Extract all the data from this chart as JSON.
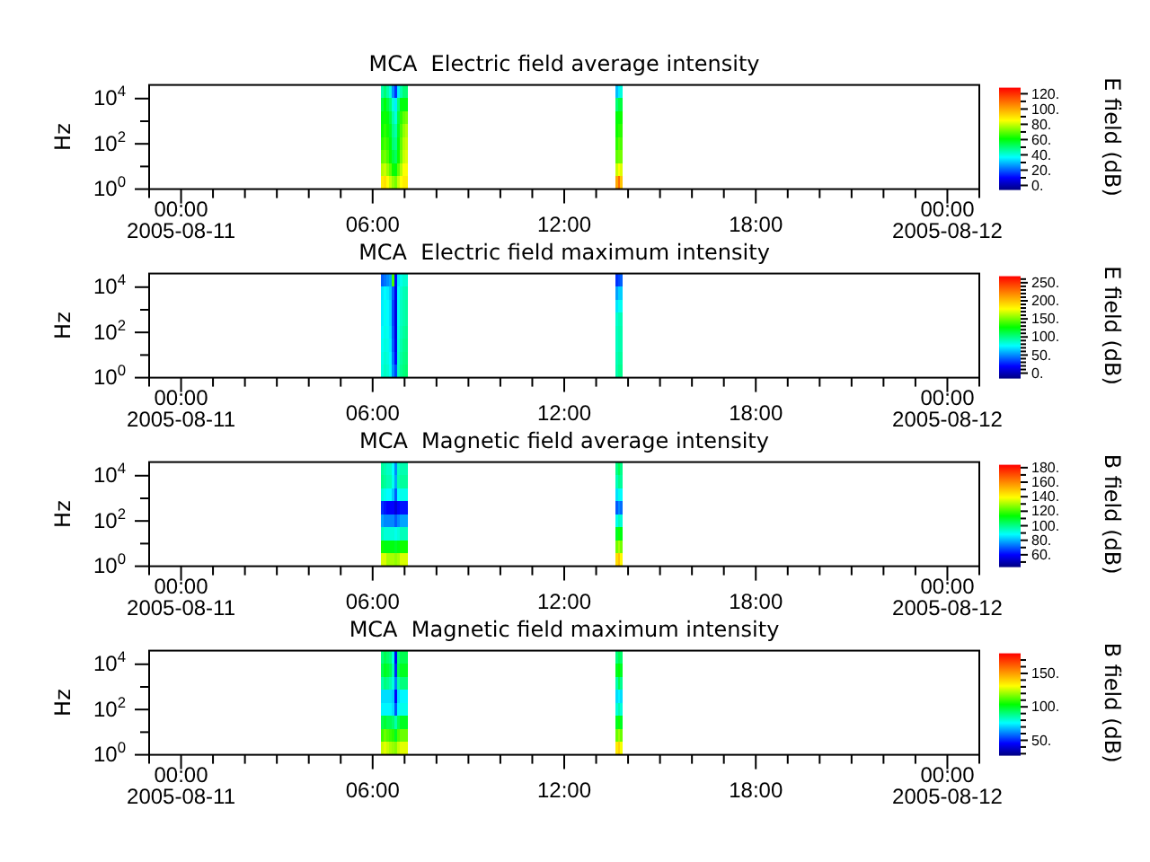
{
  "chart_data": [
    {
      "type": "heatmap",
      "title": "MCA  Electric field average intensity",
      "ylabel": "Hz",
      "clabel": "E field (dB)",
      "x": [
        "2005-08-11T06:18",
        "2005-08-11T06:23",
        "2005-08-11T06:28",
        "2005-08-11T06:33",
        "2005-08-11T06:38",
        "2005-08-11T06:43",
        "2005-08-11T06:48",
        "2005-08-11T06:53",
        "2005-08-11T06:58",
        "2005-08-11T07:03",
        "2005-08-11T07:08",
        "2005-08-11T13:33",
        "2005-08-11T13:38",
        "2005-08-11T13:43",
        "2005-08-11T13:48"
      ],
      "cells": [
        [
          45,
          50,
          45,
          40,
          25,
          15,
          35,
          45,
          50,
          50,
          null,
          null,
          30,
          35,
          40
        ],
        [
          55,
          60,
          55,
          50,
          40,
          35,
          50,
          60,
          60,
          60,
          null,
          null,
          50,
          55,
          55
        ],
        [
          60,
          62,
          60,
          55,
          45,
          40,
          55,
          65,
          70,
          72,
          null,
          null,
          60,
          62,
          62
        ],
        [
          62,
          65,
          62,
          58,
          48,
          45,
          58,
          68,
          75,
          78,
          null,
          null,
          62,
          65,
          65
        ],
        [
          65,
          68,
          65,
          60,
          50,
          48,
          60,
          70,
          78,
          80,
          null,
          null,
          65,
          70,
          68
        ],
        [
          70,
          72,
          68,
          62,
          55,
          52,
          62,
          72,
          80,
          82,
          null,
          null,
          70,
          72,
          72
        ],
        [
          78,
          80,
          75,
          70,
          62,
          60,
          70,
          78,
          85,
          85,
          null,
          null,
          80,
          85,
          82
        ],
        [
          88,
          90,
          85,
          80,
          75,
          72,
          80,
          85,
          88,
          88,
          null,
          null,
          100,
          110,
          95
        ]
      ],
      "xlim": [
        "2005-08-10T23:00",
        "2005-08-12T01:00"
      ],
      "xticks": [
        {
          "value": "2005-08-10T23:00",
          "label": null
        },
        {
          "value": "2005-08-11T00:00",
          "label": "00:00\n2005-08-11"
        },
        {
          "value": "2005-08-11T01:00",
          "label": null
        },
        {
          "value": "2005-08-11T02:00",
          "label": null
        },
        {
          "value": "2005-08-11T03:00",
          "label": null
        },
        {
          "value": "2005-08-11T04:00",
          "label": null
        },
        {
          "value": "2005-08-11T05:00",
          "label": null
        },
        {
          "value": "2005-08-11T06:00",
          "label": "06:00"
        },
        {
          "value": "2005-08-11T07:00",
          "label": null
        },
        {
          "value": "2005-08-11T08:00",
          "label": null
        },
        {
          "value": "2005-08-11T09:00",
          "label": null
        },
        {
          "value": "2005-08-11T10:00",
          "label": null
        },
        {
          "value": "2005-08-11T11:00",
          "label": null
        },
        {
          "value": "2005-08-11T12:00",
          "label": "12:00"
        },
        {
          "value": "2005-08-11T13:00",
          "label": null
        },
        {
          "value": "2005-08-11T14:00",
          "label": null
        },
        {
          "value": "2005-08-11T15:00",
          "label": null
        },
        {
          "value": "2005-08-11T16:00",
          "label": null
        },
        {
          "value": "2005-08-11T17:00",
          "label": null
        },
        {
          "value": "2005-08-11T18:00",
          "label": "18:00"
        },
        {
          "value": "2005-08-11T19:00",
          "label": null
        },
        {
          "value": "2005-08-11T20:00",
          "label": null
        },
        {
          "value": "2005-08-11T21:00",
          "label": null
        },
        {
          "value": "2005-08-11T22:00",
          "label": null
        },
        {
          "value": "2005-08-11T23:00",
          "label": null
        },
        {
          "value": "2005-08-12T00:00",
          "label": "00:00\n2005-08-12"
        },
        {
          "value": "2005-08-12T01:00",
          "label": null
        }
      ],
      "ylim": [
        1,
        40000
      ],
      "yticks": [
        {
          "value": 1,
          "label": "10$^{0}$"
        },
        {
          "value": 10,
          "label": null
        },
        {
          "value": 100,
          "label": "10$^{2}$"
        },
        {
          "value": 1000,
          "label": null
        },
        {
          "value": 10000,
          "label": "10$^{4}$"
        }
      ],
      "log": "y",
      "clim": [
        -6,
        128
      ],
      "cticks": [
        {
          "value": 0,
          "label": "0."
        },
        {
          "value": 10,
          "label": null
        },
        {
          "value": 20,
          "label": "20."
        },
        {
          "value": 30,
          "label": null
        },
        {
          "value": 40,
          "label": "40."
        },
        {
          "value": 50,
          "label": null
        },
        {
          "value": 60,
          "label": "60."
        },
        {
          "value": 70,
          "label": null
        },
        {
          "value": 80,
          "label": "80."
        },
        {
          "value": 90,
          "label": null
        },
        {
          "value": 100,
          "label": "100."
        },
        {
          "value": 110,
          "label": null
        },
        {
          "value": 120,
          "label": "120."
        }
      ]
    },
    {
      "type": "heatmap",
      "title": "MCA  Electric field maximum intensity",
      "ylabel": "Hz",
      "clabel": "E field (dB)",
      "x": [
        "2005-08-11T06:18",
        "2005-08-11T06:23",
        "2005-08-11T06:28",
        "2005-08-11T06:33",
        "2005-08-11T06:38",
        "2005-08-11T06:43",
        "2005-08-11T06:48",
        "2005-08-11T06:53",
        "2005-08-11T06:58",
        "2005-08-11T07:03",
        "2005-08-11T07:08",
        "2005-08-11T13:33",
        "2005-08-11T13:38",
        "2005-08-11T13:43",
        "2005-08-11T13:48"
      ],
      "cells": [
        [
          40,
          45,
          50,
          55,
          140,
          20,
          70,
          80,
          85,
          85,
          null,
          null,
          30,
          35,
          40
        ],
        [
          70,
          75,
          72,
          65,
          40,
          15,
          75,
          85,
          90,
          92,
          null,
          null,
          55,
          65,
          65
        ],
        [
          72,
          78,
          75,
          68,
          35,
          12,
          78,
          88,
          92,
          95,
          null,
          null,
          70,
          78,
          78
        ],
        [
          72,
          78,
          75,
          68,
          35,
          12,
          78,
          88,
          92,
          95,
          null,
          null,
          85,
          90,
          90
        ],
        [
          75,
          80,
          78,
          70,
          38,
          12,
          80,
          90,
          95,
          98,
          null,
          null,
          88,
          92,
          92
        ],
        [
          78,
          82,
          80,
          72,
          40,
          15,
          82,
          92,
          98,
          100,
          null,
          null,
          88,
          92,
          92
        ],
        [
          80,
          85,
          82,
          75,
          45,
          20,
          85,
          95,
          100,
          102,
          null,
          null,
          90,
          95,
          95
        ],
        [
          82,
          88,
          85,
          78,
          50,
          35,
          88,
          98,
          102,
          105,
          null,
          null,
          92,
          98,
          98
        ]
      ],
      "xlim": [
        "2005-08-10T23:00",
        "2005-08-12T01:00"
      ],
      "xticks": [
        {
          "value": "2005-08-10T23:00",
          "label": null
        },
        {
          "value": "2005-08-11T00:00",
          "label": "00:00\n2005-08-11"
        },
        {
          "value": "2005-08-11T01:00",
          "label": null
        },
        {
          "value": "2005-08-11T02:00",
          "label": null
        },
        {
          "value": "2005-08-11T03:00",
          "label": null
        },
        {
          "value": "2005-08-11T04:00",
          "label": null
        },
        {
          "value": "2005-08-11T05:00",
          "label": null
        },
        {
          "value": "2005-08-11T06:00",
          "label": "06:00"
        },
        {
          "value": "2005-08-11T07:00",
          "label": null
        },
        {
          "value": "2005-08-11T08:00",
          "label": null
        },
        {
          "value": "2005-08-11T09:00",
          "label": null
        },
        {
          "value": "2005-08-11T10:00",
          "label": null
        },
        {
          "value": "2005-08-11T11:00",
          "label": null
        },
        {
          "value": "2005-08-11T12:00",
          "label": "12:00"
        },
        {
          "value": "2005-08-11T13:00",
          "label": null
        },
        {
          "value": "2005-08-11T14:00",
          "label": null
        },
        {
          "value": "2005-08-11T15:00",
          "label": null
        },
        {
          "value": "2005-08-11T16:00",
          "label": null
        },
        {
          "value": "2005-08-11T17:00",
          "label": null
        },
        {
          "value": "2005-08-11T18:00",
          "label": "18:00"
        },
        {
          "value": "2005-08-11T19:00",
          "label": null
        },
        {
          "value": "2005-08-11T20:00",
          "label": null
        },
        {
          "value": "2005-08-11T21:00",
          "label": null
        },
        {
          "value": "2005-08-11T22:00",
          "label": null
        },
        {
          "value": "2005-08-11T23:00",
          "label": null
        },
        {
          "value": "2005-08-12T00:00",
          "label": "00:00\n2005-08-12"
        },
        {
          "value": "2005-08-12T01:00",
          "label": null
        }
      ],
      "ylim": [
        1,
        40000
      ],
      "yticks": [
        {
          "value": 1,
          "label": "10$^{0}$"
        },
        {
          "value": 10,
          "label": null
        },
        {
          "value": 100,
          "label": "10$^{2}$"
        },
        {
          "value": 1000,
          "label": null
        },
        {
          "value": 10000,
          "label": "10$^{4}$"
        }
      ],
      "log": "y",
      "clim": [
        -15,
        268
      ],
      "cticks": [
        {
          "value": 0,
          "label": "0."
        },
        {
          "value": 10,
          "label": null
        },
        {
          "value": 20,
          "label": null
        },
        {
          "value": 30,
          "label": null
        },
        {
          "value": 40,
          "label": null
        },
        {
          "value": 50,
          "label": "50."
        },
        {
          "value": 60,
          "label": null
        },
        {
          "value": 70,
          "label": null
        },
        {
          "value": 80,
          "label": null
        },
        {
          "value": 90,
          "label": null
        },
        {
          "value": 100,
          "label": "100."
        },
        {
          "value": 110,
          "label": null
        },
        {
          "value": 120,
          "label": null
        },
        {
          "value": 130,
          "label": null
        },
        {
          "value": 140,
          "label": null
        },
        {
          "value": 150,
          "label": "150."
        },
        {
          "value": 160,
          "label": null
        },
        {
          "value": 170,
          "label": null
        },
        {
          "value": 180,
          "label": null
        },
        {
          "value": 190,
          "label": null
        },
        {
          "value": 200,
          "label": "200."
        },
        {
          "value": 210,
          "label": null
        },
        {
          "value": 220,
          "label": null
        },
        {
          "value": 230,
          "label": null
        },
        {
          "value": 240,
          "label": null
        },
        {
          "value": 250,
          "label": "250."
        },
        {
          "value": 260,
          "label": null
        }
      ]
    },
    {
      "type": "heatmap",
      "title": "MCA  Magnetic field average intensity",
      "ylabel": "Hz",
      "clabel": "B field (dB)",
      "x": [
        "2005-08-11T06:18",
        "2005-08-11T06:23",
        "2005-08-11T06:28",
        "2005-08-11T06:33",
        "2005-08-11T06:38",
        "2005-08-11T06:43",
        "2005-08-11T06:48",
        "2005-08-11T06:53",
        "2005-08-11T06:58",
        "2005-08-11T07:03",
        "2005-08-11T07:08",
        "2005-08-11T13:33",
        "2005-08-11T13:38",
        "2005-08-11T13:43",
        "2005-08-11T13:48"
      ],
      "cells": [
        [
          98,
          96,
          94,
          94,
          88,
          75,
          94,
          96,
          96,
          96,
          null,
          null,
          100,
          105,
          100
        ],
        [
          100,
          98,
          96,
          96,
          90,
          78,
          96,
          98,
          98,
          98,
          null,
          null,
          95,
          100,
          98
        ],
        [
          92,
          90,
          88,
          88,
          82,
          70,
          88,
          90,
          90,
          90,
          null,
          null,
          85,
          90,
          88
        ],
        [
          65,
          62,
          60,
          60,
          60,
          55,
          60,
          62,
          62,
          62,
          null,
          null,
          70,
          75,
          72
        ],
        [
          78,
          75,
          75,
          75,
          75,
          70,
          75,
          78,
          78,
          78,
          null,
          null,
          90,
          95,
          92
        ],
        [
          95,
          92,
          92,
          92,
          92,
          90,
          92,
          95,
          95,
          95,
          null,
          null,
          110,
          115,
          112
        ],
        [
          115,
          112,
          112,
          112,
          112,
          110,
          112,
          115,
          115,
          115,
          null,
          null,
          125,
          130,
          125
        ],
        [
          135,
          135,
          130,
          130,
          130,
          128,
          130,
          135,
          135,
          135,
          null,
          null,
          145,
          150,
          140
        ]
      ],
      "xlim": [
        "2005-08-10T23:00",
        "2005-08-12T01:00"
      ],
      "xticks": [
        {
          "value": "2005-08-10T23:00",
          "label": null
        },
        {
          "value": "2005-08-11T00:00",
          "label": "00:00\n2005-08-11"
        },
        {
          "value": "2005-08-11T01:00",
          "label": null
        },
        {
          "value": "2005-08-11T02:00",
          "label": null
        },
        {
          "value": "2005-08-11T03:00",
          "label": null
        },
        {
          "value": "2005-08-11T04:00",
          "label": null
        },
        {
          "value": "2005-08-11T05:00",
          "label": null
        },
        {
          "value": "2005-08-11T06:00",
          "label": "06:00"
        },
        {
          "value": "2005-08-11T07:00",
          "label": null
        },
        {
          "value": "2005-08-11T08:00",
          "label": null
        },
        {
          "value": "2005-08-11T09:00",
          "label": null
        },
        {
          "value": "2005-08-11T10:00",
          "label": null
        },
        {
          "value": "2005-08-11T11:00",
          "label": null
        },
        {
          "value": "2005-08-11T12:00",
          "label": "12:00"
        },
        {
          "value": "2005-08-11T13:00",
          "label": null
        },
        {
          "value": "2005-08-11T14:00",
          "label": null
        },
        {
          "value": "2005-08-11T15:00",
          "label": null
        },
        {
          "value": "2005-08-11T16:00",
          "label": null
        },
        {
          "value": "2005-08-11T17:00",
          "label": null
        },
        {
          "value": "2005-08-11T18:00",
          "label": "18:00"
        },
        {
          "value": "2005-08-11T19:00",
          "label": null
        },
        {
          "value": "2005-08-11T20:00",
          "label": null
        },
        {
          "value": "2005-08-11T21:00",
          "label": null
        },
        {
          "value": "2005-08-11T22:00",
          "label": null
        },
        {
          "value": "2005-08-11T23:00",
          "label": null
        },
        {
          "value": "2005-08-12T00:00",
          "label": "00:00\n2005-08-12"
        },
        {
          "value": "2005-08-12T01:00",
          "label": null
        }
      ],
      "ylim": [
        1,
        40000
      ],
      "yticks": [
        {
          "value": 1,
          "label": "10$^{0}$"
        },
        {
          "value": 10,
          "label": null
        },
        {
          "value": 100,
          "label": "10$^{2}$"
        },
        {
          "value": 1000,
          "label": null
        },
        {
          "value": 10000,
          "label": "10$^{4}$"
        }
      ],
      "log": "y",
      "clim": [
        43,
        184
      ],
      "cticks": [
        {
          "value": 50,
          "label": null
        },
        {
          "value": 60,
          "label": "60."
        },
        {
          "value": 70,
          "label": null
        },
        {
          "value": 80,
          "label": "80."
        },
        {
          "value": 90,
          "label": null
        },
        {
          "value": 100,
          "label": "100."
        },
        {
          "value": 110,
          "label": null
        },
        {
          "value": 120,
          "label": "120."
        },
        {
          "value": 130,
          "label": null
        },
        {
          "value": 140,
          "label": "140."
        },
        {
          "value": 150,
          "label": null
        },
        {
          "value": 160,
          "label": "160."
        },
        {
          "value": 170,
          "label": null
        },
        {
          "value": 180,
          "label": "180."
        }
      ]
    },
    {
      "type": "heatmap",
      "title": "MCA  Magnetic field maximum intensity",
      "ylabel": "Hz",
      "clabel": "B field (dB)",
      "x": [
        "2005-08-11T06:18",
        "2005-08-11T06:23",
        "2005-08-11T06:28",
        "2005-08-11T06:33",
        "2005-08-11T06:38",
        "2005-08-11T06:43",
        "2005-08-11T06:48",
        "2005-08-11T06:53",
        "2005-08-11T06:58",
        "2005-08-11T07:03",
        "2005-08-11T07:08",
        "2005-08-11T13:33",
        "2005-08-11T13:38",
        "2005-08-11T13:43",
        "2005-08-11T13:48"
      ],
      "cells": [
        [
          90,
          95,
          92,
          90,
          80,
          45,
          90,
          95,
          95,
          95,
          null,
          null,
          90,
          95,
          92
        ],
        [
          95,
          100,
          98,
          95,
          85,
          50,
          95,
          100,
          100,
          100,
          null,
          null,
          100,
          104,
          100
        ],
        [
          85,
          90,
          88,
          85,
          80,
          60,
          85,
          90,
          90,
          90,
          null,
          null,
          85,
          95,
          88
        ],
        [
          72,
          72,
          72,
          72,
          70,
          45,
          72,
          75,
          75,
          75,
          null,
          null,
          72,
          75,
          72
        ],
        [
          75,
          75,
          75,
          75,
          72,
          55,
          75,
          78,
          78,
          78,
          null,
          null,
          80,
          85,
          80
        ],
        [
          95,
          98,
          95,
          95,
          92,
          85,
          95,
          100,
          100,
          100,
          null,
          null,
          100,
          105,
          100
        ],
        [
          110,
          115,
          112,
          110,
          108,
          100,
          112,
          115,
          115,
          115,
          null,
          null,
          115,
          120,
          115
        ],
        [
          125,
          128,
          125,
          122,
          120,
          118,
          125,
          128,
          128,
          128,
          null,
          null,
          135,
          140,
          130
        ]
      ],
      "xlim": [
        "2005-08-10T23:00",
        "2005-08-12T01:00"
      ],
      "xticks": [
        {
          "value": "2005-08-10T23:00",
          "label": null
        },
        {
          "value": "2005-08-11T00:00",
          "label": "00:00\n2005-08-11"
        },
        {
          "value": "2005-08-11T01:00",
          "label": null
        },
        {
          "value": "2005-08-11T02:00",
          "label": null
        },
        {
          "value": "2005-08-11T03:00",
          "label": null
        },
        {
          "value": "2005-08-11T04:00",
          "label": null
        },
        {
          "value": "2005-08-11T05:00",
          "label": null
        },
        {
          "value": "2005-08-11T06:00",
          "label": "06:00"
        },
        {
          "value": "2005-08-11T07:00",
          "label": null
        },
        {
          "value": "2005-08-11T08:00",
          "label": null
        },
        {
          "value": "2005-08-11T09:00",
          "label": null
        },
        {
          "value": "2005-08-11T10:00",
          "label": null
        },
        {
          "value": "2005-08-11T11:00",
          "label": null
        },
        {
          "value": "2005-08-11T12:00",
          "label": "12:00"
        },
        {
          "value": "2005-08-11T13:00",
          "label": null
        },
        {
          "value": "2005-08-11T14:00",
          "label": null
        },
        {
          "value": "2005-08-11T15:00",
          "label": null
        },
        {
          "value": "2005-08-11T16:00",
          "label": null
        },
        {
          "value": "2005-08-11T17:00",
          "label": null
        },
        {
          "value": "2005-08-11T18:00",
          "label": "18:00"
        },
        {
          "value": "2005-08-11T19:00",
          "label": null
        },
        {
          "value": "2005-08-11T20:00",
          "label": null
        },
        {
          "value": "2005-08-11T21:00",
          "label": null
        },
        {
          "value": "2005-08-11T22:00",
          "label": null
        },
        {
          "value": "2005-08-11T23:00",
          "label": null
        },
        {
          "value": "2005-08-12T00:00",
          "label": "00:00\n2005-08-12"
        },
        {
          "value": "2005-08-12T01:00",
          "label": null
        }
      ],
      "ylim": [
        1,
        40000
      ],
      "yticks": [
        {
          "value": 1,
          "label": "10$^{0}$"
        },
        {
          "value": 10,
          "label": null
        },
        {
          "value": 100,
          "label": "10$^{2}$"
        },
        {
          "value": 1000,
          "label": null
        },
        {
          "value": 10000,
          "label": "10$^{4}$"
        }
      ],
      "log": "y",
      "clim": [
        27,
        180
      ],
      "cticks": [
        {
          "value": 30,
          "label": null
        },
        {
          "value": 40,
          "label": null
        },
        {
          "value": 50,
          "label": "50."
        },
        {
          "value": 60,
          "label": null
        },
        {
          "value": 70,
          "label": null
        },
        {
          "value": 80,
          "label": null
        },
        {
          "value": 90,
          "label": null
        },
        {
          "value": 100,
          "label": "100."
        },
        {
          "value": 110,
          "label": null
        },
        {
          "value": 120,
          "label": null
        },
        {
          "value": 130,
          "label": null
        },
        {
          "value": 140,
          "label": null
        },
        {
          "value": 150,
          "label": "150."
        },
        {
          "value": 160,
          "label": null
        },
        {
          "value": 170,
          "label": null
        }
      ]
    }
  ]
}
